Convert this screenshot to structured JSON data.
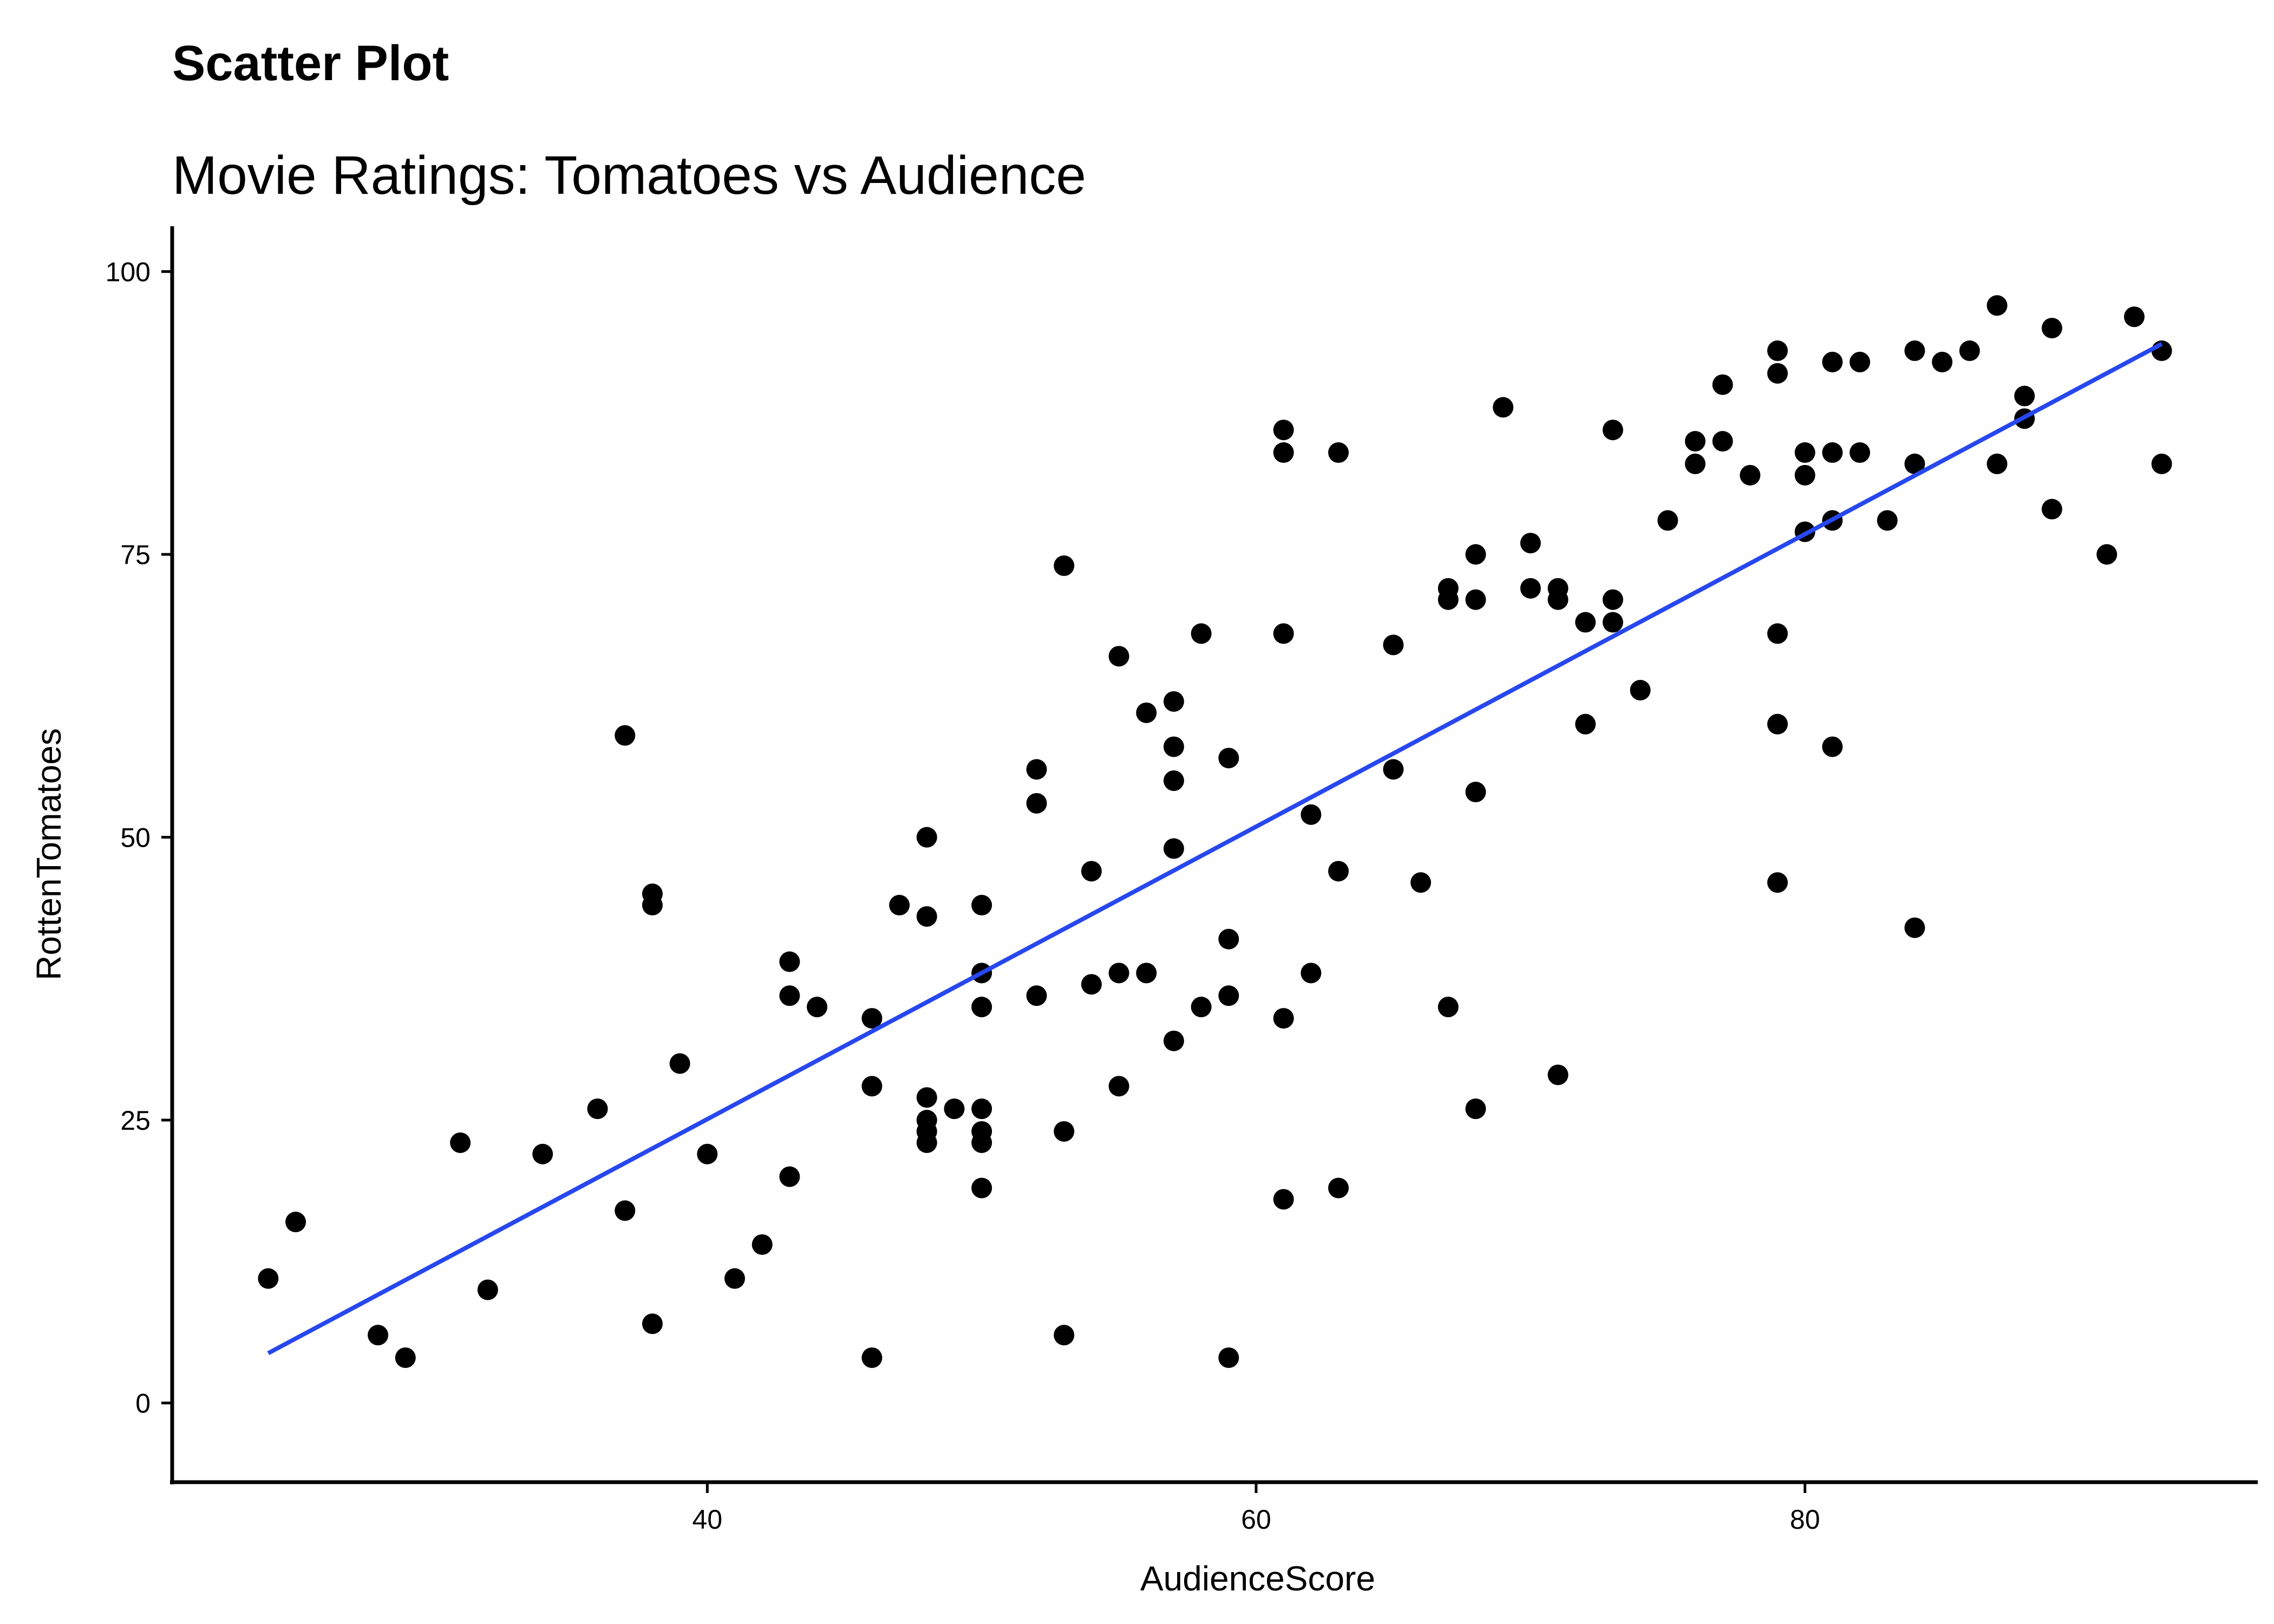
{
  "chart_data": {
    "type": "scatter",
    "title": "Scatter Plot",
    "subtitle": "Movie Ratings: Tomatoes vs Audience",
    "xlabel": "AudienceScore",
    "ylabel": "RottenTomatoes",
    "xlim": [
      20.5,
      96.5
    ],
    "ylim": [
      -7,
      104
    ],
    "xticks": [
      40,
      60,
      80
    ],
    "yticks": [
      0,
      25,
      50,
      75,
      100
    ],
    "grid": false,
    "legend": "none",
    "colors": {
      "points": "#000000",
      "fit_line": "#2747ef"
    },
    "trendline": {
      "x": [
        24,
        93
      ],
      "y": [
        4.4,
        93.6
      ]
    },
    "points": [
      [
        24,
        11
      ],
      [
        25,
        16
      ],
      [
        28,
        6
      ],
      [
        29,
        4
      ],
      [
        31,
        23
      ],
      [
        32,
        10
      ],
      [
        34,
        22
      ],
      [
        36,
        26
      ],
      [
        37,
        59
      ],
      [
        37,
        17
      ],
      [
        38,
        45
      ],
      [
        38,
        44
      ],
      [
        38,
        7
      ],
      [
        39,
        30
      ],
      [
        40,
        22
      ],
      [
        41,
        11
      ],
      [
        42,
        14
      ],
      [
        43,
        39
      ],
      [
        43,
        36
      ],
      [
        43,
        20
      ],
      [
        44,
        35
      ],
      [
        46,
        34
      ],
      [
        46,
        28
      ],
      [
        46,
        4
      ],
      [
        47,
        44
      ],
      [
        48,
        50
      ],
      [
        48,
        43
      ],
      [
        48,
        27
      ],
      [
        48,
        25
      ],
      [
        48,
        24
      ],
      [
        48,
        23
      ],
      [
        49,
        26
      ],
      [
        50,
        44
      ],
      [
        50,
        38
      ],
      [
        50,
        35
      ],
      [
        50,
        26
      ],
      [
        50,
        24
      ],
      [
        50,
        23
      ],
      [
        50,
        19
      ],
      [
        52,
        56
      ],
      [
        52,
        53
      ],
      [
        52,
        36
      ],
      [
        53,
        74
      ],
      [
        53,
        24
      ],
      [
        53,
        6
      ],
      [
        54,
        47
      ],
      [
        54,
        37
      ],
      [
        55,
        66
      ],
      [
        55,
        38
      ],
      [
        55,
        28
      ],
      [
        56,
        61
      ],
      [
        56,
        38
      ],
      [
        57,
        62
      ],
      [
        57,
        58
      ],
      [
        57,
        55
      ],
      [
        57,
        49
      ],
      [
        57,
        32
      ],
      [
        58,
        68
      ],
      [
        58,
        35
      ],
      [
        59,
        57
      ],
      [
        59,
        41
      ],
      [
        59,
        36
      ],
      [
        59,
        4
      ],
      [
        61,
        86
      ],
      [
        61,
        84
      ],
      [
        61,
        68
      ],
      [
        61,
        34
      ],
      [
        61,
        18
      ],
      [
        62,
        52
      ],
      [
        62,
        38
      ],
      [
        63,
        84
      ],
      [
        63,
        47
      ],
      [
        63,
        19
      ],
      [
        65,
        67
      ],
      [
        65,
        56
      ],
      [
        66,
        46
      ],
      [
        67,
        72
      ],
      [
        67,
        71
      ],
      [
        67,
        35
      ],
      [
        68,
        75
      ],
      [
        68,
        71
      ],
      [
        68,
        54
      ],
      [
        68,
        26
      ],
      [
        69,
        88
      ],
      [
        70,
        76
      ],
      [
        70,
        72
      ],
      [
        71,
        72
      ],
      [
        71,
        71
      ],
      [
        71,
        29
      ],
      [
        72,
        69
      ],
      [
        72,
        60
      ],
      [
        73,
        86
      ],
      [
        73,
        71
      ],
      [
        73,
        69
      ],
      [
        74,
        63
      ],
      [
        75,
        78
      ],
      [
        76,
        85
      ],
      [
        76,
        83
      ],
      [
        77,
        90
      ],
      [
        77,
        85
      ],
      [
        78,
        82
      ],
      [
        79,
        93
      ],
      [
        79,
        91
      ],
      [
        79,
        68
      ],
      [
        79,
        60
      ],
      [
        79,
        46
      ],
      [
        80,
        84
      ],
      [
        80,
        82
      ],
      [
        80,
        77
      ],
      [
        81,
        92
      ],
      [
        81,
        84
      ],
      [
        81,
        78
      ],
      [
        81,
        58
      ],
      [
        82,
        92
      ],
      [
        82,
        84
      ],
      [
        83,
        78
      ],
      [
        84,
        93
      ],
      [
        84,
        83
      ],
      [
        84,
        42
      ],
      [
        85,
        92
      ],
      [
        86,
        93
      ],
      [
        87,
        97
      ],
      [
        87,
        83
      ],
      [
        88,
        89
      ],
      [
        88,
        87
      ],
      [
        89,
        95
      ],
      [
        89,
        79
      ],
      [
        91,
        75
      ],
      [
        92,
        96
      ],
      [
        93,
        93
      ],
      [
        93,
        83
      ]
    ]
  }
}
